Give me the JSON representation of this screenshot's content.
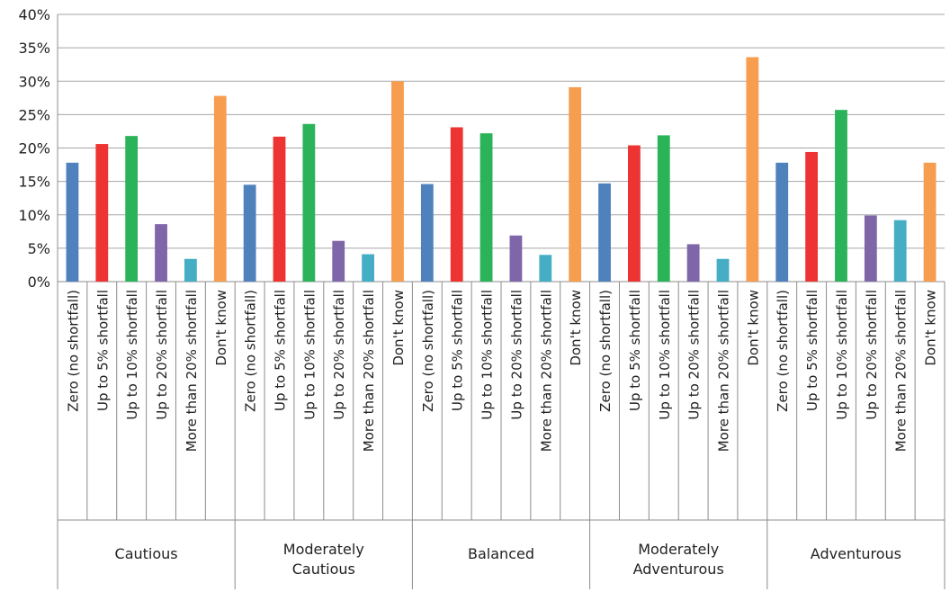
{
  "chart_data": {
    "type": "bar",
    "title": "",
    "xlabel": "",
    "ylabel": "",
    "ylim": [
      0,
      40
    ],
    "yticks": [
      "0%",
      "5%",
      "10%",
      "15%",
      "20%",
      "25%",
      "30%",
      "35%",
      "40%"
    ],
    "grid": true,
    "legend": "none",
    "sub_categories": [
      "Zero (no shortfall)",
      "Up to 5% shortfall",
      "Up to 10% shortfall",
      "Up to 20% shortfall",
      "More than 20% shortfall",
      "Don't know"
    ],
    "colors": [
      "#4f81bd",
      "#ee3333",
      "#2bb35a",
      "#7f66a8",
      "#45adc4",
      "#f79d4f"
    ],
    "groups": [
      {
        "label": "Cautious",
        "values": [
          17.8,
          20.6,
          21.8,
          8.6,
          3.4,
          27.8
        ]
      },
      {
        "label": "Moderately Cautious",
        "values": [
          14.5,
          21.7,
          23.6,
          6.1,
          4.1,
          30.0
        ]
      },
      {
        "label": "Balanced",
        "values": [
          14.6,
          23.1,
          22.2,
          6.9,
          4.0,
          29.1
        ]
      },
      {
        "label": "Moderately Adventurous",
        "values": [
          14.7,
          20.4,
          21.9,
          5.6,
          3.4,
          33.6
        ]
      },
      {
        "label": "Adventurous",
        "values": [
          17.8,
          19.4,
          25.7,
          9.9,
          9.2,
          17.8
        ]
      }
    ]
  }
}
